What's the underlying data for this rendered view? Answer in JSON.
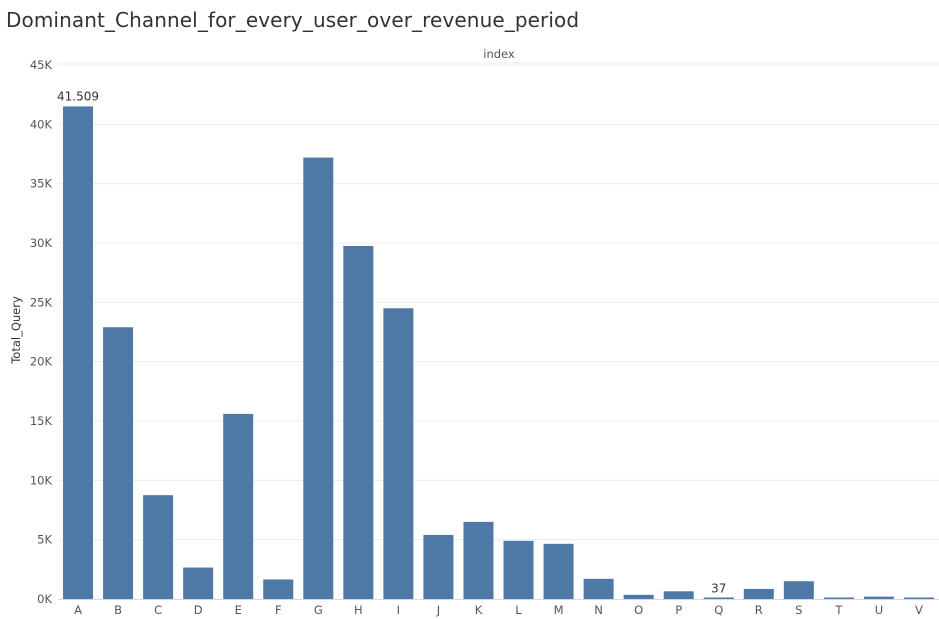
{
  "chart_data": {
    "type": "bar",
    "title": "Dominant_Channel_for_every_user_over_revenue_period",
    "header_label": "index",
    "ylabel": "Total_Query",
    "xlabel": "",
    "categories": [
      "A",
      "B",
      "C",
      "D",
      "E",
      "F",
      "G",
      "H",
      "I",
      "J",
      "K",
      "L",
      "M",
      "N",
      "O",
      "P",
      "Q",
      "R",
      "S",
      "T",
      "U",
      "V"
    ],
    "values": [
      41509,
      22900,
      8750,
      2650,
      15600,
      1650,
      37200,
      29750,
      24500,
      5400,
      6500,
      4900,
      4650,
      1700,
      350,
      650,
      37,
      850,
      1500,
      80,
      200,
      120
    ],
    "ylim": [
      0,
      45000
    ],
    "y_ticks": [
      0,
      5000,
      10000,
      15000,
      20000,
      25000,
      30000,
      35000,
      40000,
      45000
    ],
    "y_tick_labels": [
      "0K",
      "5K",
      "10K",
      "15K",
      "20K",
      "25K",
      "30K",
      "35K",
      "40K",
      "45K"
    ],
    "data_labels": [
      {
        "category": "A",
        "text": "41.509"
      },
      {
        "category": "Q",
        "text": "37"
      }
    ],
    "grid": true,
    "bar_color": "#4e79a7",
    "grid_color": "#ececec",
    "axis_line_color": "#d9d9d9"
  }
}
